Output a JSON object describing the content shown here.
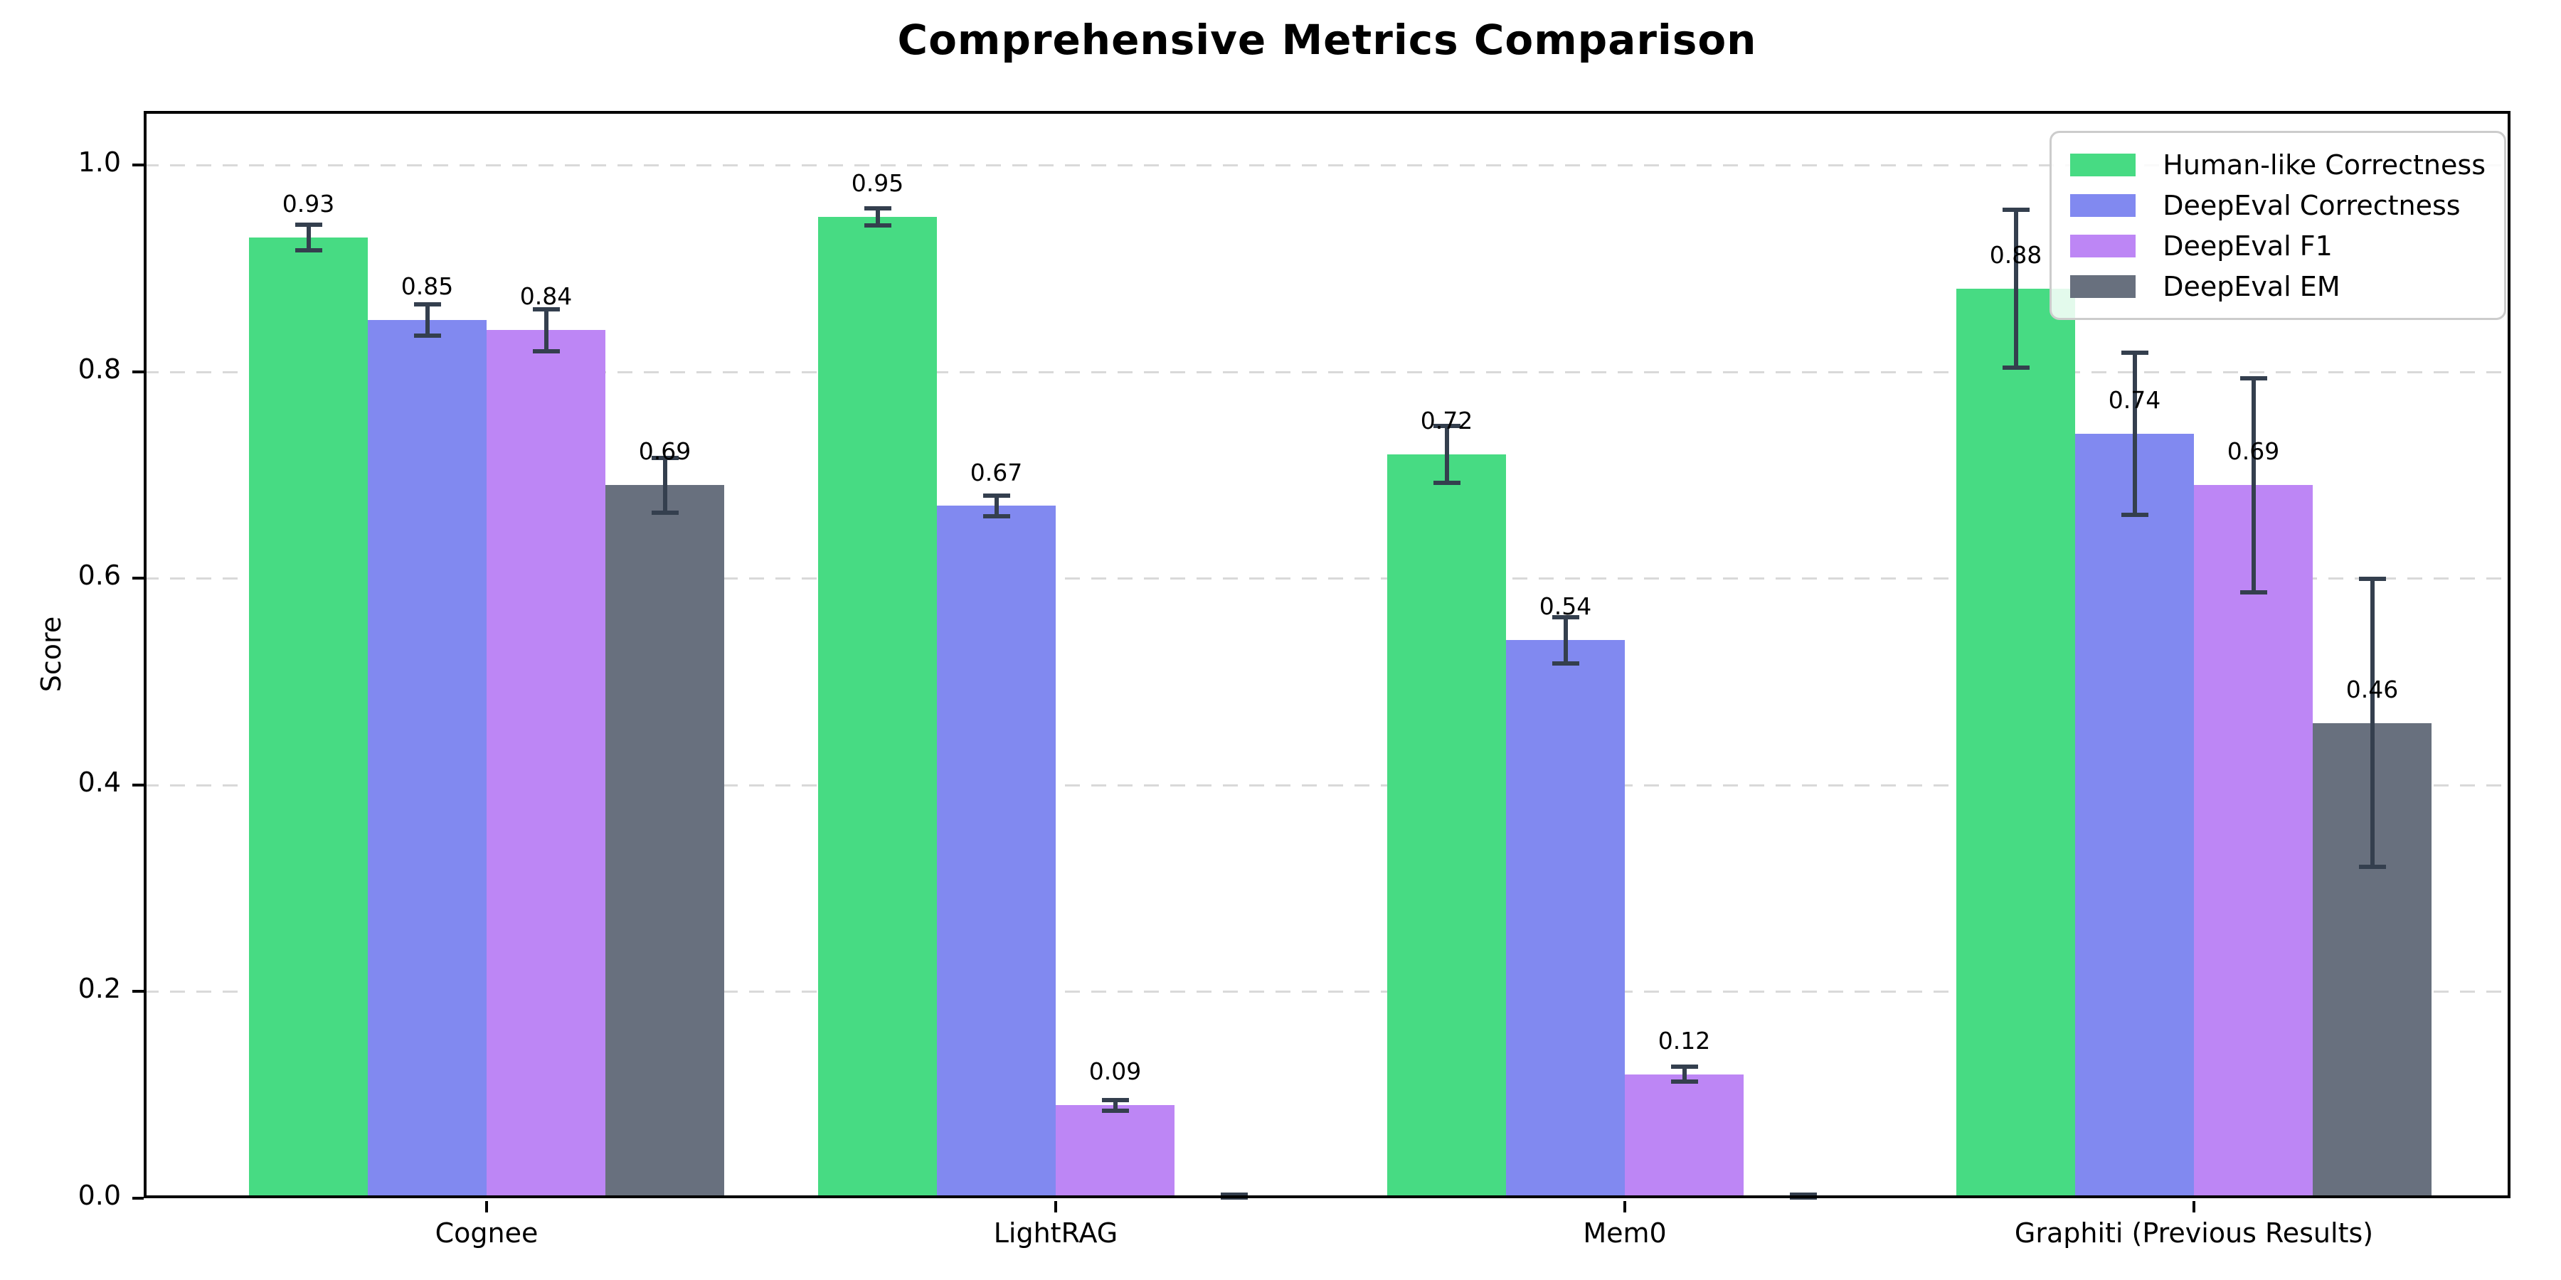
{
  "chart_data": {
    "type": "bar",
    "title": "Comprehensive Metrics Comparison",
    "ylabel": "Score",
    "categories": [
      "Cognee",
      "LightRAG",
      "Mem0",
      "Graphiti (Previous Results)"
    ],
    "series": [
      {
        "name": "Human-like Correctness",
        "color": "#47db83",
        "values": [
          0.93,
          0.95,
          0.72,
          0.88
        ],
        "errors": [
          0.013,
          0.009,
          0.028,
          0.077
        ],
        "labels": [
          "0.93",
          "0.95",
          "0.72",
          "0.88"
        ]
      },
      {
        "name": "DeepEval Correctness",
        "color": "#8189f0",
        "values": [
          0.85,
          0.67,
          0.54,
          0.74
        ],
        "errors": [
          0.016,
          0.011,
          0.023,
          0.079
        ],
        "labels": [
          "0.85",
          "0.67",
          "0.54",
          "0.74"
        ]
      },
      {
        "name": "DeepEval F1",
        "color": "#bd86f5",
        "values": [
          0.84,
          0.09,
          0.12,
          0.69
        ],
        "errors": [
          0.021,
          0.006,
          0.008,
          0.104
        ],
        "labels": [
          "0.84",
          "0.09",
          "0.12",
          "0.69"
        ]
      },
      {
        "name": "DeepEval EM",
        "color": "#68707e",
        "values": [
          0.69,
          0.0,
          0.0,
          0.46
        ],
        "errors": [
          0.027,
          0.004,
          0.004,
          0.14
        ],
        "labels": [
          "0.69",
          "",
          "",
          "0.46"
        ]
      }
    ],
    "yticks": [
      "0.0",
      "0.2",
      "0.4",
      "0.6",
      "0.8",
      "1.0"
    ],
    "ylim": [
      0,
      1.05
    ],
    "grid": "horizontal dashed at 0.2 intervals",
    "grid_color": "#d9d9d9",
    "error_bar_color": "#343f4e",
    "legend_position": "upper right"
  }
}
